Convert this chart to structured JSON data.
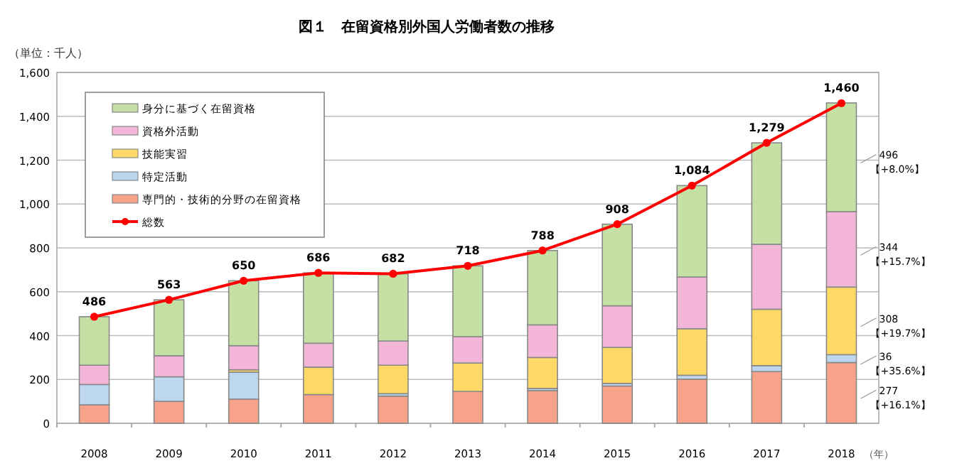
{
  "chart_data": {
    "type": "bar",
    "stacked": true,
    "title": "図１　在留資格別外国人労働者数の推移",
    "ylabel": "（単位：千人）",
    "xlabel": "（年）",
    "categories": [
      "2008",
      "2009",
      "2010",
      "2011",
      "2012",
      "2013",
      "2014",
      "2015",
      "2016",
      "2017",
      "2018"
    ],
    "series": [
      {
        "name": "専門的・技術的分野の在留資格",
        "color": "#f7a38a",
        "values": [
          84,
          100,
          110,
          131,
          124,
          145,
          149,
          170,
          201,
          236,
          277
        ]
      },
      {
        "name": "特定活動",
        "color": "#bdd7ee",
        "values": [
          93,
          112,
          123,
          null,
          11,
          null,
          10,
          12,
          18,
          27,
          36
        ]
      },
      {
        "name": "技能実習",
        "color": "#ffd966",
        "values": [
          0,
          0,
          11,
          125,
          130,
          130,
          141,
          164,
          212,
          257,
          308
        ]
      },
      {
        "name": "資格外活動",
        "color": "#f4b6d8",
        "values": [
          88,
          96,
          110,
          109,
          110,
          120,
          149,
          190,
          236,
          296,
          344
        ]
      },
      {
        "name": "身分に基づく在留資格",
        "color": "#c5e0a5",
        "values": [
          221,
          255,
          296,
          321,
          307,
          323,
          339,
          372,
          417,
          463,
          496
        ]
      },
      {
        "name": "総数",
        "type": "line",
        "color": "#ff0000",
        "marker": "circle",
        "values": [
          486,
          563,
          650,
          686,
          682,
          718,
          788,
          908,
          1084,
          1279,
          1460
        ],
        "value_labels": [
          "486",
          "563",
          "650",
          "686",
          "682",
          "718",
          "788",
          "908",
          "1,084",
          "1,279",
          "1,460"
        ]
      }
    ],
    "ylim": [
      0,
      1600
    ],
    "yticks": [
      {
        "value": 0,
        "label": "0"
      },
      {
        "value": 200,
        "label": "200"
      },
      {
        "value": 400,
        "label": "400"
      },
      {
        "value": 600,
        "label": "600"
      },
      {
        "value": 800,
        "label": "800"
      },
      {
        "value": 1000,
        "label": "1,000"
      },
      {
        "value": 1200,
        "label": "1,200"
      },
      {
        "value": 1400,
        "label": "1,400"
      },
      {
        "value": 1600,
        "label": "1,600"
      }
    ],
    "grid": "y",
    "legend": "top left",
    "annotations": [
      "277",
      "【+16.1%】",
      "36",
      "【+35.6%】",
      "308",
      "【+19.7%】",
      "344",
      "【+15.7%】",
      "496",
      "【+8.0%】"
    ]
  }
}
